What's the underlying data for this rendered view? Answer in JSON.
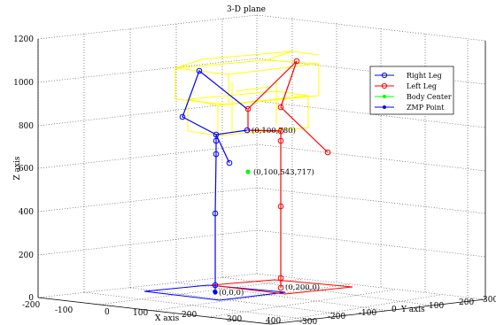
{
  "chart_data": {
    "type": "line3d",
    "title": "3-D plane",
    "xlabel": "X axis",
    "ylabel": "Y axis",
    "zlabel": "Z axis",
    "xlim": [
      -200,
      400
    ],
    "ylim": [
      -300,
      300
    ],
    "zlim": [
      0,
      1200
    ],
    "grid": true,
    "legend_position": "top-right",
    "x_ticks": [
      "-200",
      "-100",
      "0",
      "100",
      "200",
      "300",
      "400"
    ],
    "y_ticks": [
      "-300",
      "-200",
      "-100",
      "0",
      "100",
      "200",
      "300"
    ],
    "z_ticks": [
      "0",
      "200",
      "400",
      "600",
      "800",
      "1000",
      "1200"
    ],
    "series": [
      {
        "name": "Right Leg",
        "color": "#0000ff",
        "marker": "circle"
      },
      {
        "name": "Left Leg",
        "color": "#ff0000",
        "marker": "circle"
      },
      {
        "name": "Body Center",
        "color": "#00ff00",
        "marker": "star"
      },
      {
        "name": "ZMP Point",
        "color": "#0000ff",
        "marker": "star"
      }
    ],
    "annotations": [
      {
        "text": "(0,100,780)"
      },
      {
        "text": "(0,100,543,717)"
      },
      {
        "text": "(0,0,0)"
      },
      {
        "text": "(0,200,0)"
      }
    ]
  }
}
